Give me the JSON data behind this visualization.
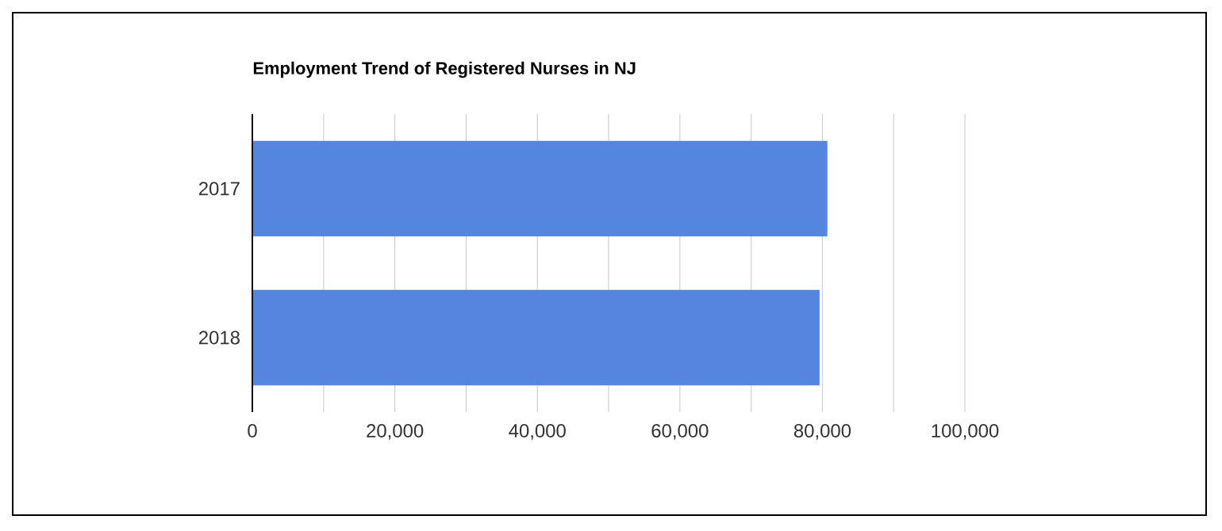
{
  "chart_data": {
    "type": "bar",
    "orientation": "horizontal",
    "title": "Employment Trend of Registered Nurses in NJ",
    "categories": [
      "2017",
      "2018"
    ],
    "values": [
      80700,
      79600
    ],
    "color": "#5486e0",
    "xlim": [
      0,
      100000
    ],
    "xticks": [
      0,
      {
        "value": 10000,
        "label": null
      },
      {
        "value": 20000,
        "label": "20,000"
      },
      {
        "value": 30000,
        "label": null
      },
      {
        "value": 40000,
        "label": "40,000"
      },
      {
        "value": 50000,
        "label": null
      },
      {
        "value": 60000,
        "label": "60,000"
      },
      {
        "value": 70000,
        "label": null
      },
      {
        "value": 80000,
        "label": "80,000"
      },
      {
        "value": 90000,
        "label": null
      },
      {
        "value": 100000,
        "label": "100,000"
      }
    ],
    "grid": "x"
  }
}
